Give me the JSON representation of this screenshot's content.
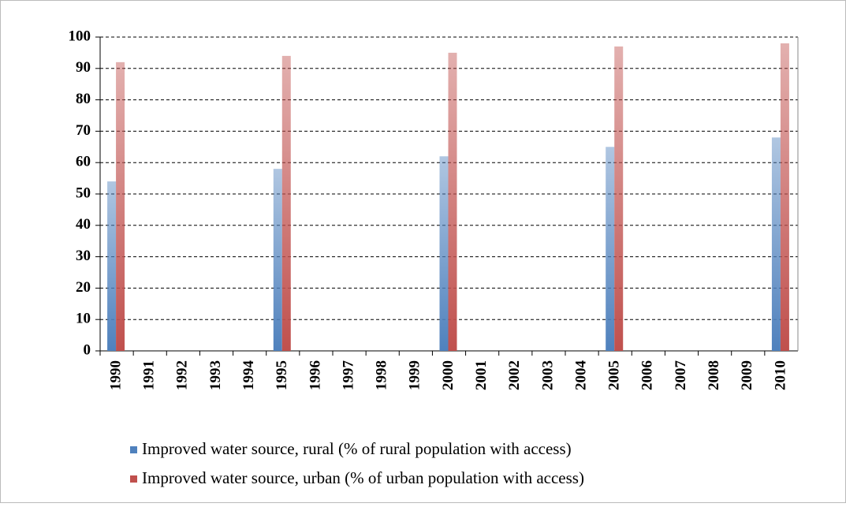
{
  "chart_data": {
    "type": "bar",
    "categories": [
      "1990",
      "1991",
      "1992",
      "1993",
      "1994",
      "1995",
      "1996",
      "1997",
      "1998",
      "1999",
      "2000",
      "2001",
      "2002",
      "2003",
      "2004",
      "2005",
      "2006",
      "2007",
      "2008",
      "2009",
      "2010"
    ],
    "series": [
      {
        "name": "Improved water source, rural (% of rural population with access)",
        "color": "#4f81bd",
        "values": [
          54,
          null,
          null,
          null,
          null,
          58,
          null,
          null,
          null,
          null,
          62,
          null,
          null,
          null,
          null,
          65,
          null,
          null,
          null,
          null,
          68
        ]
      },
      {
        "name": "Improved water source, urban (% of urban population with access)",
        "color": "#c0504d",
        "values": [
          92,
          null,
          null,
          null,
          null,
          94,
          null,
          null,
          null,
          null,
          95,
          null,
          null,
          null,
          null,
          97,
          null,
          null,
          null,
          null,
          98
        ]
      }
    ],
    "ylim": [
      0,
      100
    ],
    "yticks": [
      0,
      10,
      20,
      30,
      40,
      50,
      60,
      70,
      80,
      90,
      100
    ],
    "grid": true,
    "legend": "bottom"
  }
}
